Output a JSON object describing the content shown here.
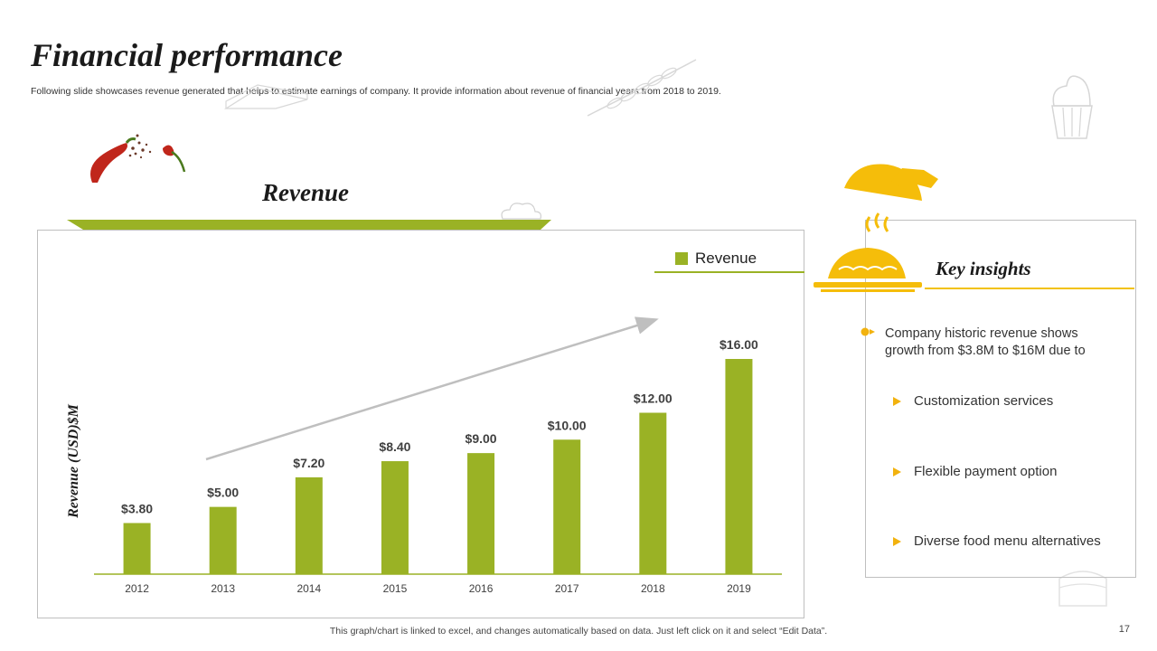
{
  "slide": {
    "title": "Financial performance",
    "subtitle": "Following slide showcases revenue generated that helps to estimate earnings of company. It provide information about revenue of financial years from 2018 to 2019.",
    "footer_note": "This graph/chart is linked to excel,  and changes automatically based on data. Just left click on it and select “Edit Data”.",
    "page_number": "17"
  },
  "chart_heading": "Revenue",
  "chart_data": {
    "type": "bar",
    "title": "Revenue",
    "categories": [
      "2012",
      "2013",
      "2014",
      "2015",
      "2016",
      "2017",
      "2018",
      "2019"
    ],
    "series": [
      {
        "name": "Revenue",
        "values": [
          3.8,
          5.0,
          7.2,
          8.4,
          9.0,
          10.0,
          12.0,
          16.0
        ],
        "labels": [
          "$3.80",
          "$5.00",
          "$7.20",
          "$8.40",
          "$9.00",
          "$10.00",
          "$12.00",
          "$16.00"
        ]
      }
    ],
    "xlabel": "",
    "ylabel": "Revenue (USD)$M",
    "ylim": [
      0,
      16
    ],
    "grid": false,
    "legend_position": "top-right",
    "annotations": [
      "upward trend arrow"
    ]
  },
  "insights": {
    "title": "Key insights",
    "lead": "Company historic revenue shows growth from $3.8M to $16M due to",
    "bullets": [
      "Customization services",
      "Flexible payment option",
      "Diverse food menu alternatives"
    ]
  },
  "colors": {
    "bar": "#9ab225",
    "accent_yellow": "#f2b20e",
    "trend_arrow": "#bfbfbf",
    "chili": "#c0261b"
  },
  "icons": [
    "chili-pepper-icon",
    "serving-cloche-icon",
    "pie-dish-icon",
    "cupcake-icon",
    "wheat-icon",
    "cake-icon"
  ]
}
